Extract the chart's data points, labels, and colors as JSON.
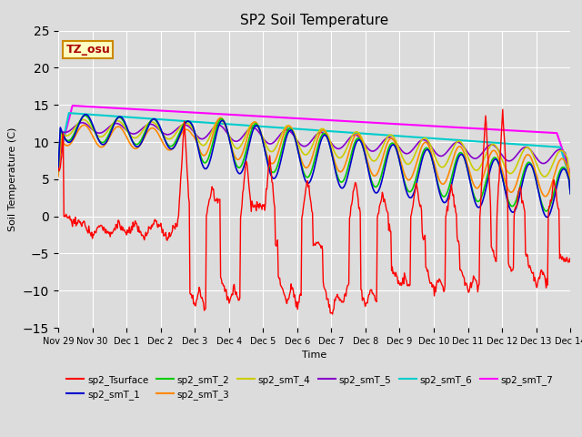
{
  "title": "SP2 Soil Temperature",
  "ylabel": "Soil Temperature (C)",
  "xlabel": "Time",
  "annotation": "TZ_osu",
  "ylim": [
    -15,
    25
  ],
  "bg_color": "#dcdcdc",
  "series_colors": {
    "sp2_Tsurface": "#ff0000",
    "sp2_smT_1": "#0000cc",
    "sp2_smT_2": "#00cc00",
    "sp2_smT_3": "#ff8800",
    "sp2_smT_4": "#cccc00",
    "sp2_smT_5": "#8800cc",
    "sp2_smT_6": "#00cccc",
    "sp2_smT_7": "#ff00ff"
  },
  "xtick_labels": [
    "Nov 29",
    "Nov 30",
    "Dec 1",
    "Dec 2",
    "Dec 3",
    "Dec 4",
    "Dec 5",
    "Dec 6",
    "Dec 7",
    "Dec 8",
    "Dec 9",
    "Dec 10",
    "Dec 11",
    "Dec 12",
    "Dec 13",
    "Dec 14"
  ],
  "n_points": 720
}
